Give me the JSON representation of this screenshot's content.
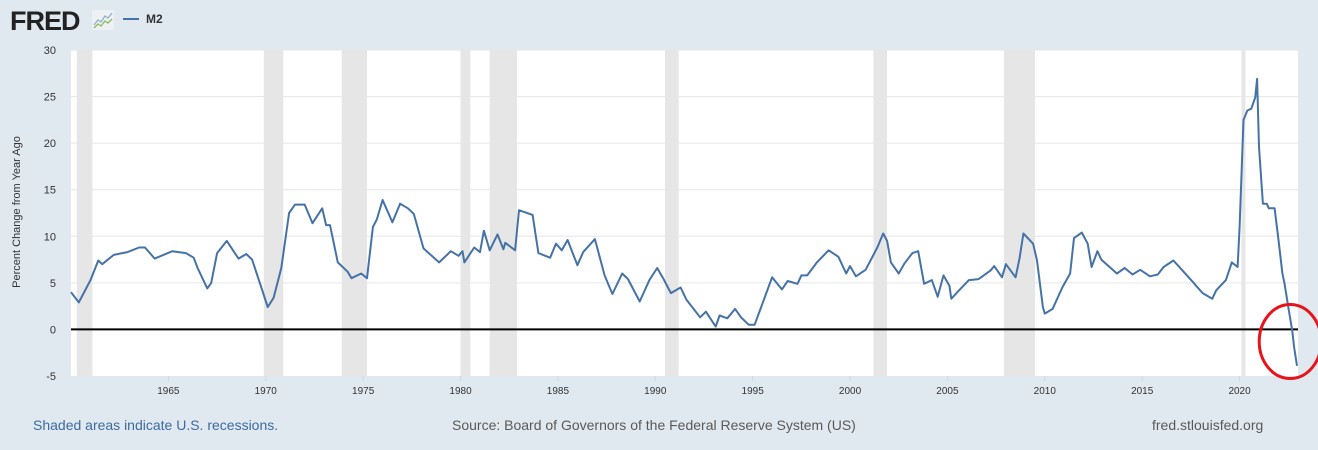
{
  "header": {
    "logo": "FRED",
    "legend_label": "M2"
  },
  "colors": {
    "line": "#4572a7",
    "recession": "#e6e6e6",
    "zero_line": "#000000",
    "annotation": "#e8141c",
    "background": "#e1e9f0"
  },
  "footer": {
    "recession_note": "Shaded areas indicate U.S. recessions.",
    "source": "Source: Board of Governors of the Federal Reserve System (US)",
    "site": "fred.stlouisfed.org"
  },
  "chart_data": {
    "type": "line",
    "title": "",
    "xlabel": "",
    "ylabel": "Percent Change from Year Ago",
    "xlim": [
      1960,
      2023
    ],
    "ylim": [
      -5,
      30
    ],
    "yticks": [
      -5,
      0,
      5,
      10,
      15,
      20,
      25,
      30
    ],
    "xticks": [
      1965,
      1970,
      1975,
      1980,
      1985,
      1990,
      1995,
      2000,
      2005,
      2010,
      2015,
      2020
    ],
    "grid": true,
    "reference_line": 0,
    "recessions": [
      [
        1960.3,
        1961.1
      ],
      [
        1969.9,
        1970.9
      ],
      [
        1973.9,
        1975.2
      ],
      [
        1980.0,
        1980.5
      ],
      [
        1981.5,
        1982.9
      ],
      [
        1990.5,
        1991.2
      ],
      [
        2001.2,
        2001.9
      ],
      [
        2007.9,
        2009.5
      ],
      [
        2020.1,
        2020.3
      ]
    ],
    "annotation": {
      "type": "ellipse",
      "center": [
        2022.6,
        -1.3
      ]
    },
    "series": [
      {
        "name": "M2",
        "x": [
          1960.0,
          1960.4,
          1961.0,
          1961.4,
          1961.6,
          1962.2,
          1962.9,
          1963.5,
          1963.8,
          1964.3,
          1965.2,
          1965.9,
          1966.3,
          1966.5,
          1967.0,
          1967.2,
          1967.5,
          1968.0,
          1968.6,
          1969.0,
          1969.3,
          1969.9,
          1970.1,
          1970.4,
          1970.8,
          1971.2,
          1971.5,
          1972.0,
          1972.4,
          1972.9,
          1973.1,
          1973.3,
          1973.7,
          1974.2,
          1974.4,
          1974.9,
          1975.2,
          1975.5,
          1975.7,
          1976.0,
          1976.5,
          1976.9,
          1977.3,
          1977.6,
          1978.1,
          1978.9,
          1979.5,
          1979.9,
          1980.1,
          1980.2,
          1980.7,
          1981.0,
          1981.2,
          1981.5,
          1981.9,
          1982.2,
          1982.3,
          1982.8,
          1983.0,
          1983.7,
          1984.0,
          1984.6,
          1984.9,
          1985.2,
          1985.5,
          1986.0,
          1986.3,
          1986.9,
          1987.4,
          1987.8,
          1988.3,
          1988.6,
          1989.2,
          1989.7,
          1990.1,
          1990.4,
          1990.8,
          1991.3,
          1991.6,
          1992.3,
          1992.6,
          1993.1,
          1993.3,
          1993.7,
          1994.1,
          1994.4,
          1994.8,
          1995.1,
          1995.4,
          1996.0,
          1996.5,
          1996.8,
          1997.3,
          1997.5,
          1997.8,
          1998.3,
          1998.9,
          1999.4,
          1999.8,
          2000.0,
          2000.3,
          2000.8,
          2001.1,
          2001.4,
          2001.7,
          2001.9,
          2002.1,
          2002.5,
          2002.8,
          2003.2,
          2003.5,
          2003.8,
          2004.2,
          2004.5,
          2004.8,
          2005.1,
          2005.2,
          2005.6,
          2006.1,
          2006.6,
          2007.2,
          2007.4,
          2007.8,
          2008.0,
          2008.5,
          2008.7,
          2008.9,
          2009.4,
          2009.6,
          2009.9,
          2010.0,
          2010.4,
          2010.9,
          2011.3,
          2011.5,
          2011.9,
          2012.2,
          2012.4,
          2012.7,
          2012.9,
          2013.7,
          2014.1,
          2014.5,
          2014.9,
          2015.4,
          2015.8,
          2016.1,
          2016.6,
          2017.0,
          2017.6,
          2018.1,
          2018.6,
          2018.8,
          2019.3,
          2019.6,
          2019.9,
          2020.0,
          2020.2,
          2020.4,
          2020.6,
          2020.8,
          2020.9,
          2021.0,
          2021.2,
          2021.4,
          2021.5,
          2021.8,
          2022.0,
          2022.2,
          2022.3,
          2022.5,
          2022.7,
          2022.8,
          2022.95
        ],
        "values": [
          4.0,
          2.9,
          5.3,
          7.4,
          7.0,
          8.0,
          8.3,
          8.8,
          8.8,
          7.6,
          8.4,
          8.2,
          7.7,
          6.6,
          4.4,
          5.0,
          8.2,
          9.5,
          7.6,
          8.1,
          7.5,
          3.7,
          2.4,
          3.4,
          6.6,
          12.5,
          13.4,
          13.4,
          11.4,
          13.0,
          11.2,
          11.2,
          7.2,
          6.2,
          5.5,
          6.0,
          5.5,
          11.0,
          11.8,
          13.9,
          11.5,
          13.5,
          13.0,
          12.4,
          8.7,
          7.2,
          8.4,
          7.9,
          8.4,
          7.2,
          8.8,
          8.3,
          10.6,
          8.5,
          10.2,
          8.6,
          9.3,
          8.5,
          12.8,
          12.3,
          8.2,
          7.7,
          9.2,
          8.5,
          9.6,
          6.9,
          8.3,
          9.7,
          5.8,
          3.8,
          6.0,
          5.4,
          3.0,
          5.3,
          6.6,
          5.5,
          3.9,
          4.5,
          3.2,
          1.3,
          1.9,
          0.3,
          1.5,
          1.2,
          2.2,
          1.3,
          0.5,
          0.5,
          2.2,
          5.6,
          4.3,
          5.2,
          4.9,
          5.8,
          5.8,
          7.2,
          8.5,
          7.8,
          6.0,
          6.8,
          5.7,
          6.4,
          7.6,
          8.8,
          10.3,
          9.5,
          7.2,
          6.0,
          7.1,
          8.2,
          8.4,
          4.9,
          5.3,
          3.5,
          5.8,
          4.7,
          3.3,
          4.2,
          5.3,
          5.4,
          6.3,
          6.8,
          5.6,
          7.0,
          5.6,
          7.6,
          10.3,
          9.2,
          7.4,
          2.4,
          1.7,
          2.2,
          4.5,
          6.0,
          9.8,
          10.4,
          9.2,
          6.7,
          8.4,
          7.5,
          6.0,
          6.6,
          5.9,
          6.4,
          5.7,
          5.9,
          6.7,
          7.4,
          6.5,
          5.1,
          3.9,
          3.3,
          4.2,
          5.3,
          7.2,
          6.7,
          11.0,
          22.5,
          23.5,
          23.7,
          24.9,
          26.9,
          19.6,
          13.5,
          13.5,
          13.0,
          13.0,
          9.6,
          6.0,
          5.0,
          2.4,
          -0.1,
          -1.9,
          -3.9
        ]
      }
    ]
  }
}
